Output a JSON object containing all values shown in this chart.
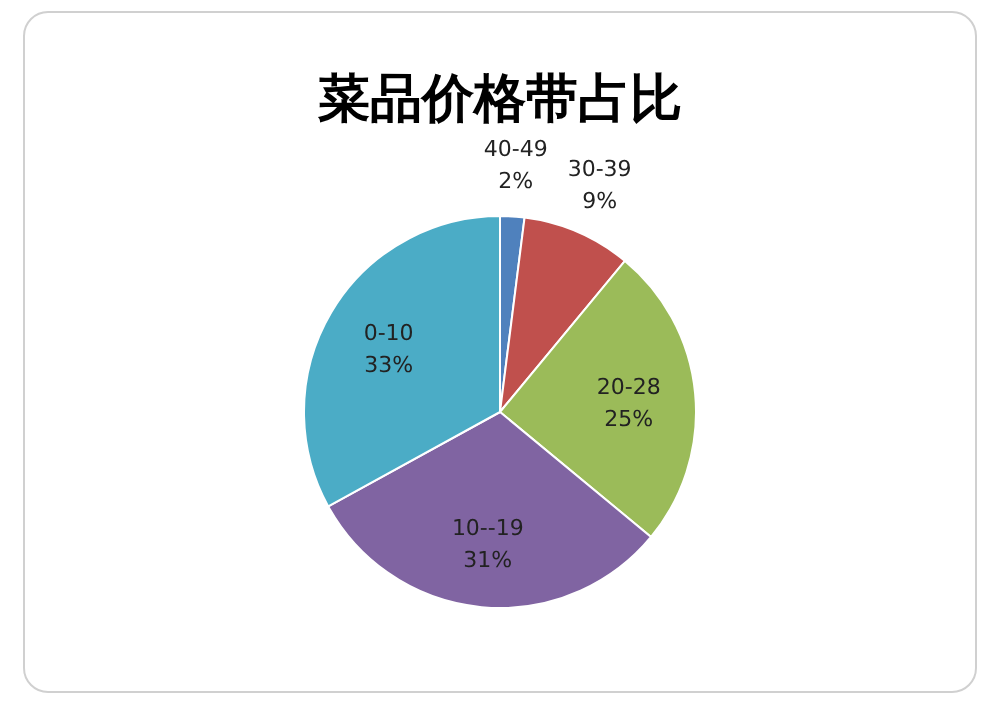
{
  "chart_data": {
    "type": "pie",
    "title": "菜品价格带占比",
    "categories": [
      "40-49",
      "30-39",
      "20-28",
      "10--19",
      "0-10"
    ],
    "values": [
      2,
      9,
      25,
      31,
      33
    ],
    "colors": [
      "#4f81bd",
      "#c0504d",
      "#9bbb59",
      "#8064a2",
      "#4bacc6"
    ],
    "value_labels": [
      "2%",
      "9%",
      "25%",
      "31%",
      "33%"
    ]
  }
}
